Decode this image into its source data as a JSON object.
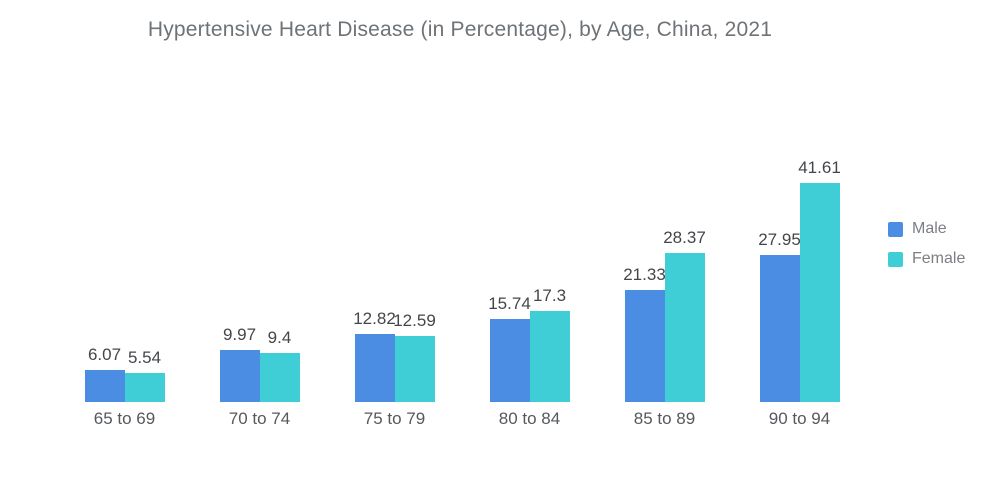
{
  "colors": {
    "background": "#FFFFFF",
    "male": "#4A8DE2",
    "female": "#3FCED5",
    "title_text": "#6E7377",
    "value_label_text": "#43474B",
    "category_label_text": "#55595D",
    "legend_text": "#7B7F83"
  },
  "chart_data": {
    "type": "bar",
    "title": "Hypertensive Heart Disease (in Percentage), by Age, China, 2021",
    "categories": [
      "65 to 69",
      "70 to 74",
      "75 to 79",
      "80 to 84",
      "85 to 89",
      "90 to 94"
    ],
    "series": [
      {
        "name": "Male",
        "color": "#4A8DE2",
        "values": [
          6.07,
          9.97,
          12.82,
          15.74,
          21.33,
          27.95
        ]
      },
      {
        "name": "Female",
        "color": "#3FCED5",
        "values": [
          5.54,
          9.4,
          12.59,
          17.3,
          28.37,
          41.61
        ]
      }
    ],
    "xlabel": "",
    "ylabel": "",
    "ylim": [
      0,
      45
    ],
    "grid": false,
    "axis_lines": false,
    "value_labels": true,
    "legend_position": "right"
  }
}
